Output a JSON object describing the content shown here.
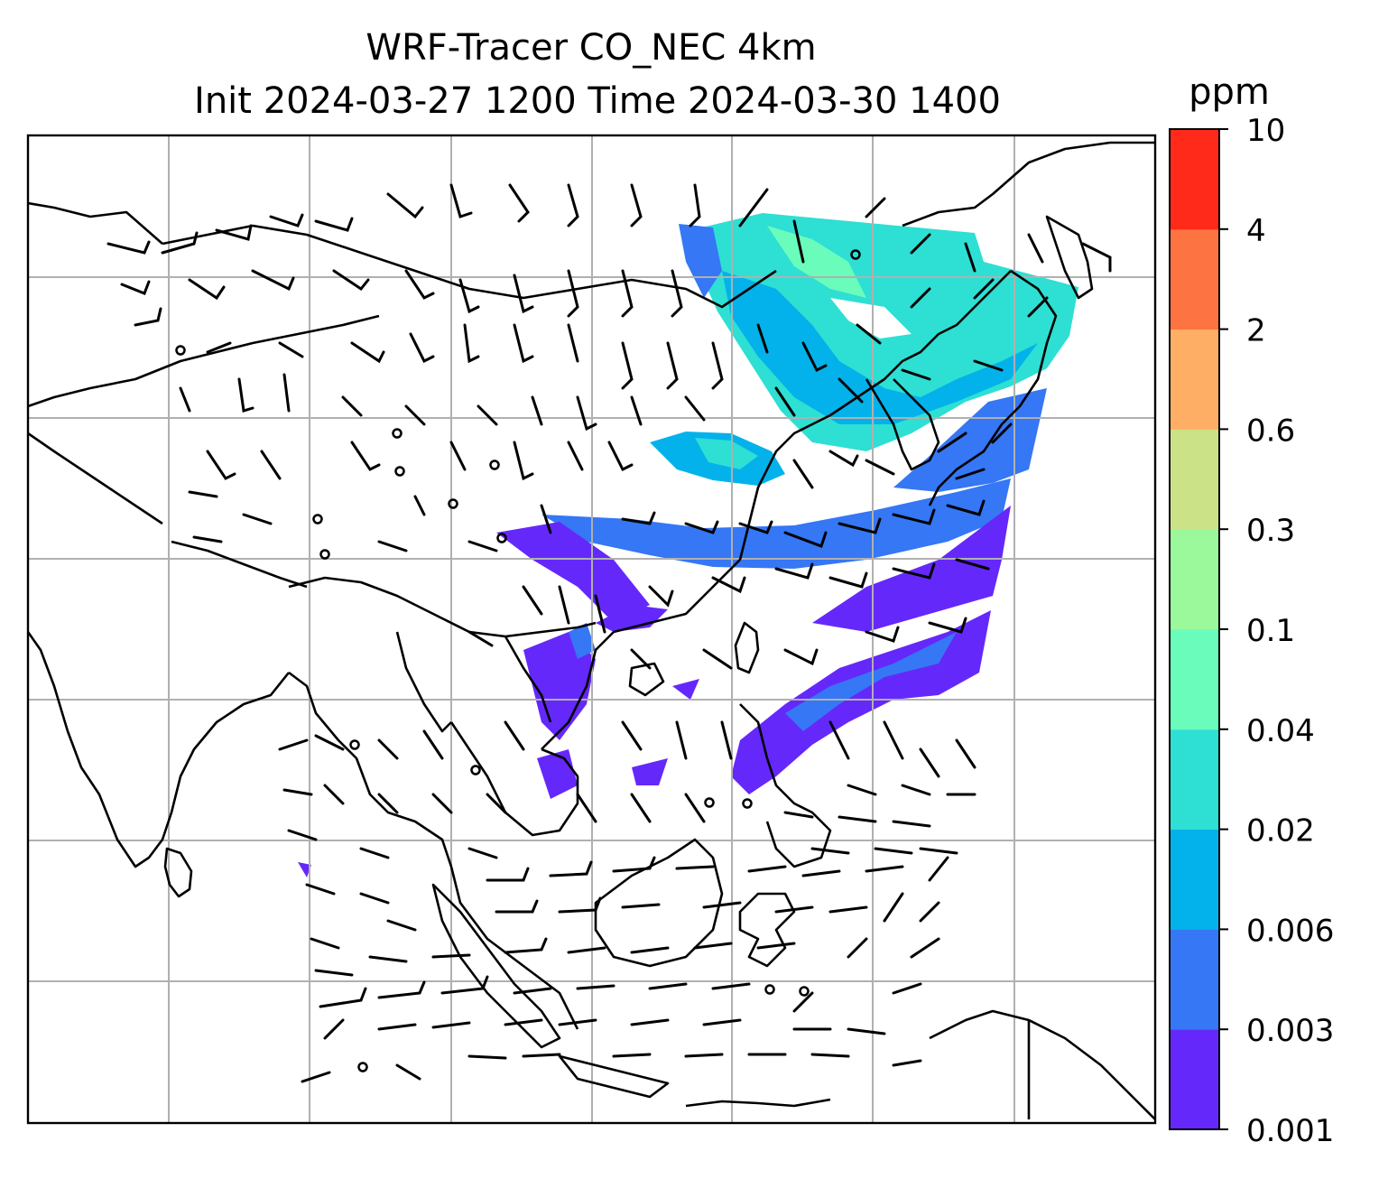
{
  "figure": {
    "title_line1": "WRF-Tracer CO_NEC 4km",
    "title_line2": "Init 2024-03-27 1200 Time 2024-03-30 1400"
  },
  "colorbar": {
    "units": "ppm",
    "levels": [
      {
        "label": "0.001",
        "color": "#6528fa"
      },
      {
        "label": "0.003",
        "color": "#3577f5"
      },
      {
        "label": "0.006",
        "color": "#03b2ea"
      },
      {
        "label": "0.02",
        "color": "#2edfd3"
      },
      {
        "label": "0.04",
        "color": "#6afcbb"
      },
      {
        "label": "0.1",
        "color": "#9bf99b"
      },
      {
        "label": "0.3",
        "color": "#cbe287"
      },
      {
        "label": "0.6",
        "color": "#feaf65"
      },
      {
        "label": "2",
        "color": "#fe7342"
      },
      {
        "label": "4",
        "color": "#ff2a1a"
      },
      {
        "label": "10",
        "color": ""
      }
    ]
  },
  "map": {
    "gridlines": true,
    "gridline_color": "#b0b0b0",
    "coastline_color": "#000000",
    "features": [
      "coastlines",
      "country-borders",
      "wind-barbs",
      "tracer-concentration-fill"
    ]
  }
}
